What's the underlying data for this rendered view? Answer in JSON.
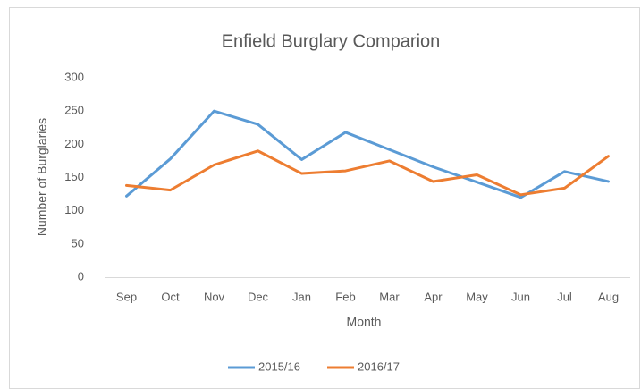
{
  "chart_data": {
    "type": "line",
    "title": "Enfield Burglary Comparion",
    "x_label": "Month",
    "y_label": "Number of Burglaries",
    "categories": [
      "Sep",
      "Oct",
      "Nov",
      "Dec",
      "Jan",
      "Feb",
      "Mar",
      "Apr",
      "May",
      "Jun",
      "Jul",
      "Aug"
    ],
    "series": [
      {
        "name": "2015/16",
        "color": "#5b9bd5",
        "values": [
          122,
          178,
          250,
          230,
          177,
          218,
          192,
          166,
          143,
          120,
          159,
          144
        ]
      },
      {
        "name": "2016/17",
        "color": "#ed7d31",
        "values": [
          138,
          131,
          169,
          190,
          156,
          160,
          175,
          144,
          154,
          124,
          134,
          182
        ]
      }
    ],
    "ylim": [
      0,
      300
    ],
    "yticks": [
      0,
      50,
      100,
      150,
      200,
      250,
      300
    ],
    "grid": false,
    "legend": "bottom"
  }
}
